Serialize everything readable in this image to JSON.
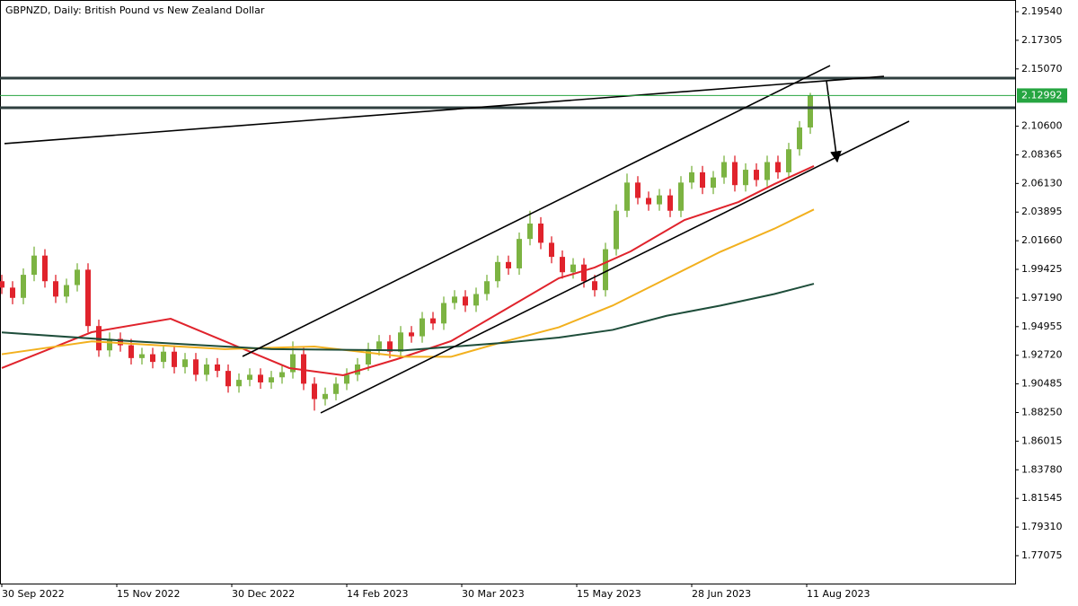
{
  "chart_data": {
    "type": "candlestick",
    "title": "GBPNZD, Daily:  British Pound vs New Zealand Dollar",
    "ylim": [
      1.749,
      2.2045
    ],
    "xlim": [
      0,
      282
    ],
    "yticks": [
      {
        "value": 2.1954,
        "label": "2.19540"
      },
      {
        "value": 2.17305,
        "label": "2.17305"
      },
      {
        "value": 2.1507,
        "label": "2.15070"
      },
      {
        "value": 2.106,
        "label": "2.10600"
      },
      {
        "value": 2.08365,
        "label": "2.08365"
      },
      {
        "value": 2.0613,
        "label": "2.06130"
      },
      {
        "value": 2.03895,
        "label": "2.03895"
      },
      {
        "value": 2.0166,
        "label": "2.01660"
      },
      {
        "value": 1.99425,
        "label": "1.99425"
      },
      {
        "value": 1.9719,
        "label": "1.97190"
      },
      {
        "value": 1.94955,
        "label": "1.94955"
      },
      {
        "value": 1.9272,
        "label": "1.92720"
      },
      {
        "value": 1.90485,
        "label": "1.90485"
      },
      {
        "value": 1.8825,
        "label": "1.88250"
      },
      {
        "value": 1.86015,
        "label": "1.86015"
      },
      {
        "value": 1.8378,
        "label": "1.83780"
      },
      {
        "value": 1.81545,
        "label": "1.81545"
      },
      {
        "value": 1.7931,
        "label": "1.79310"
      },
      {
        "value": 1.77075,
        "label": "1.77075"
      }
    ],
    "xticks": [
      {
        "value": 0,
        "label": "30 Sep 2022"
      },
      {
        "value": 32,
        "label": "15 Nov 2022"
      },
      {
        "value": 64,
        "label": "30 Dec 2022"
      },
      {
        "value": 96,
        "label": "14 Feb 2023"
      },
      {
        "value": 128,
        "label": "30 Mar 2023"
      },
      {
        "value": 160,
        "label": "15 May 2023"
      },
      {
        "value": 192,
        "label": "28 Jun 2023"
      },
      {
        "value": 224,
        "label": "11 Aug 2023"
      }
    ],
    "last_price": {
      "value": 2.12992,
      "label": "2.12992"
    },
    "last_price_color": "#26a541",
    "up_color": "#7cb342",
    "down_color": "#e0232c",
    "x": [
      0,
      3,
      6,
      9,
      12,
      15,
      18,
      21,
      24,
      27,
      30,
      33,
      36,
      39,
      42,
      45,
      48,
      51,
      54,
      57,
      60,
      63,
      66,
      69,
      72,
      75,
      78,
      81,
      84,
      87,
      90,
      93,
      96,
      99,
      102,
      105,
      108,
      111,
      114,
      117,
      120,
      123,
      126,
      129,
      132,
      135,
      138,
      141,
      144,
      147,
      150,
      153,
      156,
      159,
      162,
      165,
      168,
      171,
      174,
      177,
      180,
      183,
      186,
      189,
      192,
      195,
      198,
      201,
      204,
      207,
      210,
      213,
      216,
      219,
      222,
      225
    ],
    "open": [
      1.985,
      1.98,
      1.972,
      1.99,
      2.005,
      1.985,
      1.973,
      1.982,
      1.994,
      1.95,
      1.931,
      1.94,
      1.935,
      1.925,
      1.928,
      1.922,
      1.93,
      1.918,
      1.924,
      1.912,
      1.92,
      1.915,
      1.903,
      1.908,
      1.912,
      1.906,
      1.91,
      1.914,
      1.928,
      1.905,
      1.893,
      1.897,
      1.905,
      1.912,
      1.92,
      1.932,
      1.938,
      1.93,
      1.945,
      1.942,
      1.956,
      1.952,
      1.968,
      1.973,
      1.966,
      1.975,
      1.985,
      2.0,
      1.995,
      2.018,
      2.03,
      2.015,
      2.004,
      1.992,
      1.998,
      1.985,
      1.978,
      2.01,
      2.04,
      2.062,
      2.05,
      2.045,
      2.052,
      2.04,
      2.062,
      2.07,
      2.058,
      2.066,
      2.078,
      2.06,
      2.072,
      2.064,
      2.078,
      2.07,
      2.088,
      2.105
    ],
    "close": [
      1.98,
      1.972,
      1.99,
      2.005,
      1.985,
      1.973,
      1.982,
      1.994,
      1.95,
      1.931,
      1.94,
      1.935,
      1.925,
      1.928,
      1.922,
      1.93,
      1.918,
      1.924,
      1.912,
      1.92,
      1.915,
      1.903,
      1.908,
      1.912,
      1.906,
      1.91,
      1.914,
      1.928,
      1.905,
      1.893,
      1.897,
      1.905,
      1.912,
      1.92,
      1.932,
      1.938,
      1.93,
      1.945,
      1.942,
      1.956,
      1.952,
      1.968,
      1.973,
      1.966,
      1.975,
      1.985,
      2.0,
      1.995,
      2.018,
      2.03,
      2.015,
      2.004,
      1.992,
      1.998,
      1.985,
      1.978,
      2.01,
      2.04,
      2.062,
      2.05,
      2.045,
      2.052,
      2.04,
      2.062,
      2.07,
      2.058,
      2.066,
      2.078,
      2.06,
      2.072,
      2.064,
      2.078,
      2.07,
      2.088,
      2.105,
      2.1299
    ],
    "high": [
      1.99,
      1.985,
      1.995,
      2.012,
      2.01,
      1.99,
      1.987,
      1.999,
      1.999,
      1.955,
      1.945,
      1.945,
      1.94,
      1.933,
      1.933,
      1.935,
      1.935,
      1.929,
      1.929,
      1.925,
      1.925,
      1.92,
      1.913,
      1.917,
      1.917,
      1.915,
      1.919,
      1.938,
      1.933,
      1.91,
      1.902,
      1.91,
      1.917,
      1.925,
      1.937,
      1.943,
      1.943,
      1.95,
      1.95,
      1.961,
      1.961,
      1.973,
      1.978,
      1.978,
      1.98,
      1.99,
      2.005,
      2.005,
      2.023,
      2.04,
      2.035,
      2.02,
      2.009,
      2.003,
      2.003,
      1.99,
      2.015,
      2.045,
      2.069,
      2.067,
      2.055,
      2.057,
      2.057,
      2.067,
      2.075,
      2.075,
      2.071,
      2.083,
      2.083,
      2.077,
      2.077,
      2.083,
      2.083,
      2.093,
      2.11,
      2.132
    ],
    "low": [
      1.975,
      1.967,
      1.967,
      1.985,
      1.98,
      1.968,
      1.968,
      1.977,
      1.945,
      1.926,
      1.926,
      1.93,
      1.92,
      1.92,
      1.917,
      1.917,
      1.913,
      1.913,
      1.907,
      1.907,
      1.91,
      1.898,
      1.898,
      1.903,
      1.901,
      1.901,
      1.905,
      1.909,
      1.9,
      1.884,
      1.888,
      1.892,
      1.9,
      1.907,
      1.915,
      1.927,
      1.925,
      1.925,
      1.937,
      1.937,
      1.947,
      1.947,
      1.963,
      1.961,
      1.961,
      1.97,
      1.98,
      1.99,
      1.99,
      2.013,
      2.01,
      1.999,
      1.987,
      1.987,
      1.98,
      1.973,
      1.973,
      2.005,
      2.035,
      2.045,
      2.04,
      2.04,
      2.035,
      2.035,
      2.057,
      2.053,
      2.053,
      2.061,
      2.055,
      2.055,
      2.059,
      2.059,
      2.065,
      2.065,
      2.083,
      2.1
    ],
    "series": [
      {
        "color": "#e0232c",
        "x": [
          0,
          25,
          47,
          65,
          80,
          95,
          110,
          125,
          140,
          155,
          165,
          175,
          190,
          205,
          215,
          226
        ],
        "values": [
          1.9172,
          1.9452,
          1.9557,
          1.9347,
          1.9172,
          1.9116,
          1.9242,
          1.9382,
          1.9627,
          1.9873,
          1.9957,
          2.0083,
          2.0328,
          2.0468,
          2.0608,
          2.0749
        ]
      },
      {
        "color": "#f2b01e",
        "x": [
          0,
          25,
          62,
          87,
          112,
          125,
          140,
          155,
          170,
          185,
          200,
          215,
          226
        ],
        "values": [
          1.928,
          1.938,
          1.932,
          1.934,
          1.926,
          1.926,
          1.938,
          1.949,
          1.966,
          1.987,
          2.008,
          2.026,
          2.041
        ]
      },
      {
        "color": "#1e4d3a",
        "x": [
          0,
          37,
          75,
          112,
          140,
          155,
          170,
          185,
          200,
          215,
          226
        ],
        "values": [
          1.945,
          1.938,
          1.932,
          1.931,
          1.937,
          1.941,
          1.947,
          1.958,
          1.966,
          1.975,
          1.983
        ]
      }
    ],
    "levels": [
      2.1435,
      2.1204
    ],
    "level_color": "#2f3f3f",
    "trendlines": [
      {
        "x": [
          0.75,
          245.5
        ],
        "y": [
          2.0924,
          2.1449
        ]
      },
      {
        "x": [
          67,
          230.5
        ],
        "y": [
          1.9263,
          2.1533
        ]
      },
      {
        "x": [
          88.75,
          252.5
        ],
        "y": [
          1.8822,
          2.1099
        ]
      }
    ],
    "arrow": {
      "x": [
        229.5,
        232.5
      ],
      "y": [
        2.1414,
        2.0784
      ]
    }
  }
}
